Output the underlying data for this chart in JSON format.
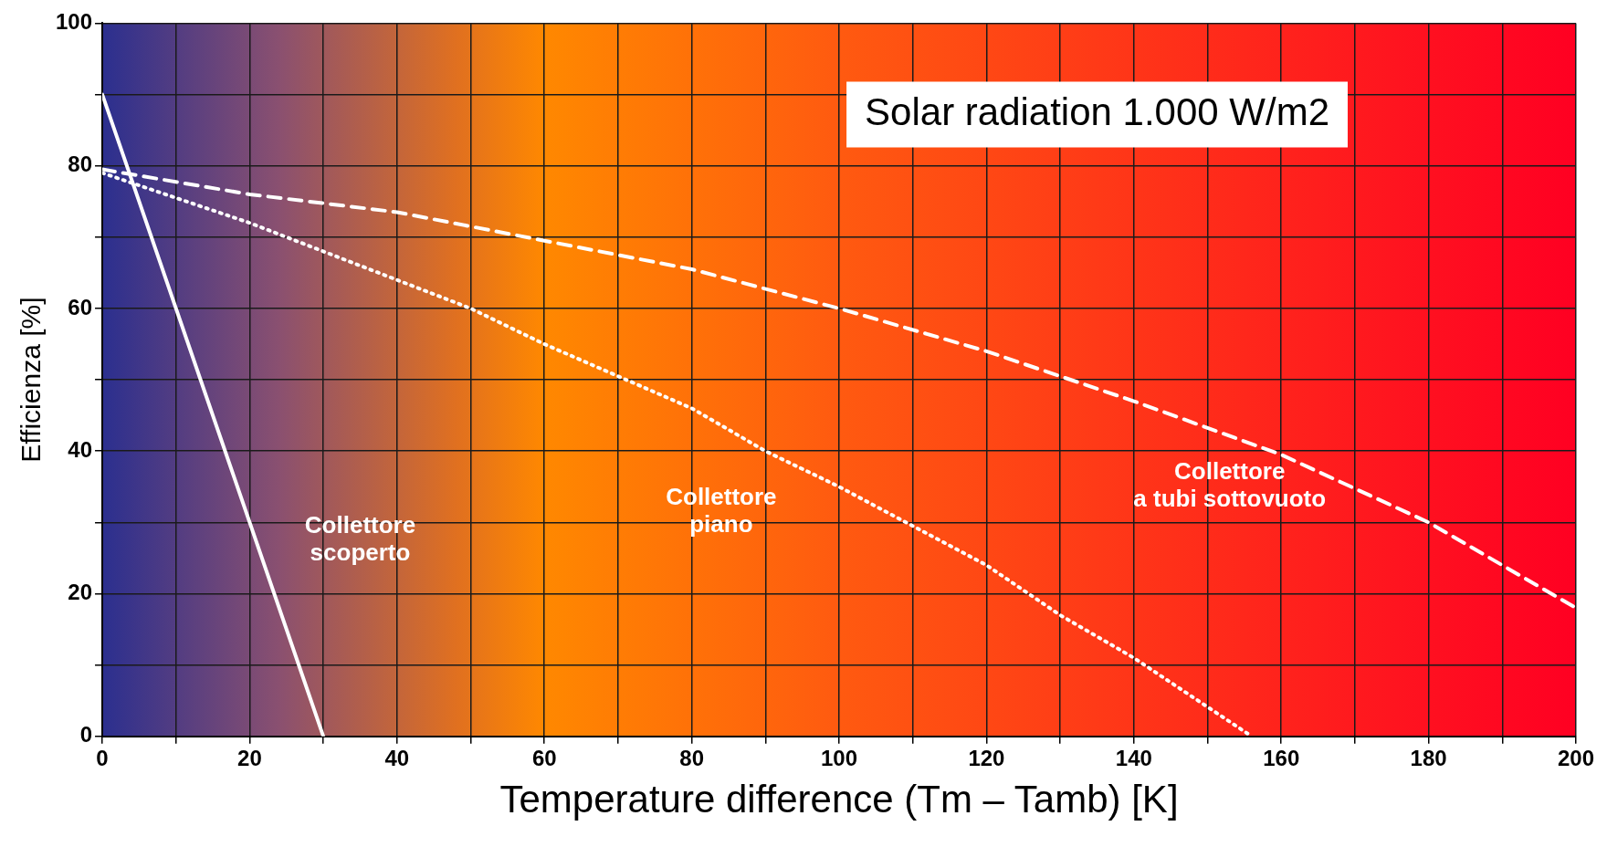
{
  "chart_data": {
    "type": "line",
    "xlabel": "Temperature difference (Tm – Tamb) [K]",
    "ylabel": "Efficienza [%]",
    "xlim": [
      0,
      200
    ],
    "ylim": [
      0,
      100
    ],
    "xticks": [
      0,
      {
        "value": 10,
        "label": null
      },
      20,
      {
        "value": 30,
        "label": null
      },
      40,
      {
        "value": 50,
        "label": null
      },
      60,
      {
        "value": 70,
        "label": null
      },
      80,
      {
        "value": 90,
        "label": null
      },
      100,
      {
        "value": 110,
        "label": null
      },
      120,
      {
        "value": 130,
        "label": null
      },
      140,
      {
        "value": 150,
        "label": null
      },
      160,
      {
        "value": 170,
        "label": null
      },
      180,
      {
        "value": 190,
        "label": null
      },
      200
    ],
    "yticks": [
      0,
      {
        "value": 10,
        "label": null
      },
      20,
      {
        "value": 30,
        "label": null
      },
      40,
      {
        "value": 50,
        "label": null
      },
      60,
      {
        "value": 70,
        "label": null
      },
      80,
      {
        "value": 90,
        "label": null
      },
      100
    ],
    "grid": true,
    "legend": false,
    "marker": "none",
    "series": [
      {
        "name": "Collettore\nscoperto",
        "color": "#ffffff",
        "line_style": "solid",
        "x": [
          0,
          30
        ],
        "values": [
          90,
          0
        ]
      },
      {
        "name": "Collettore\npiano",
        "color": "#ffffff",
        "line_style": "dotted",
        "x": [
          0,
          20,
          40,
          50,
          60,
          80,
          90,
          100,
          120,
          130,
          140,
          156
        ],
        "values": [
          79,
          72,
          64,
          60,
          55,
          46,
          40,
          35,
          24,
          17,
          11,
          0
        ]
      },
      {
        "name": "Collettore\na tubi sottovuoto",
        "color": "#ffffff",
        "line_style": "dashed",
        "x": [
          0,
          20,
          40,
          60,
          80,
          100,
          120,
          140,
          160,
          180,
          200
        ],
        "values": [
          79.5,
          76,
          73.5,
          69.5,
          65.5,
          60,
          54,
          47,
          39.5,
          30,
          18
        ]
      }
    ],
    "annotations": [
      "Solar radiation 1.000 W/m2"
    ]
  }
}
